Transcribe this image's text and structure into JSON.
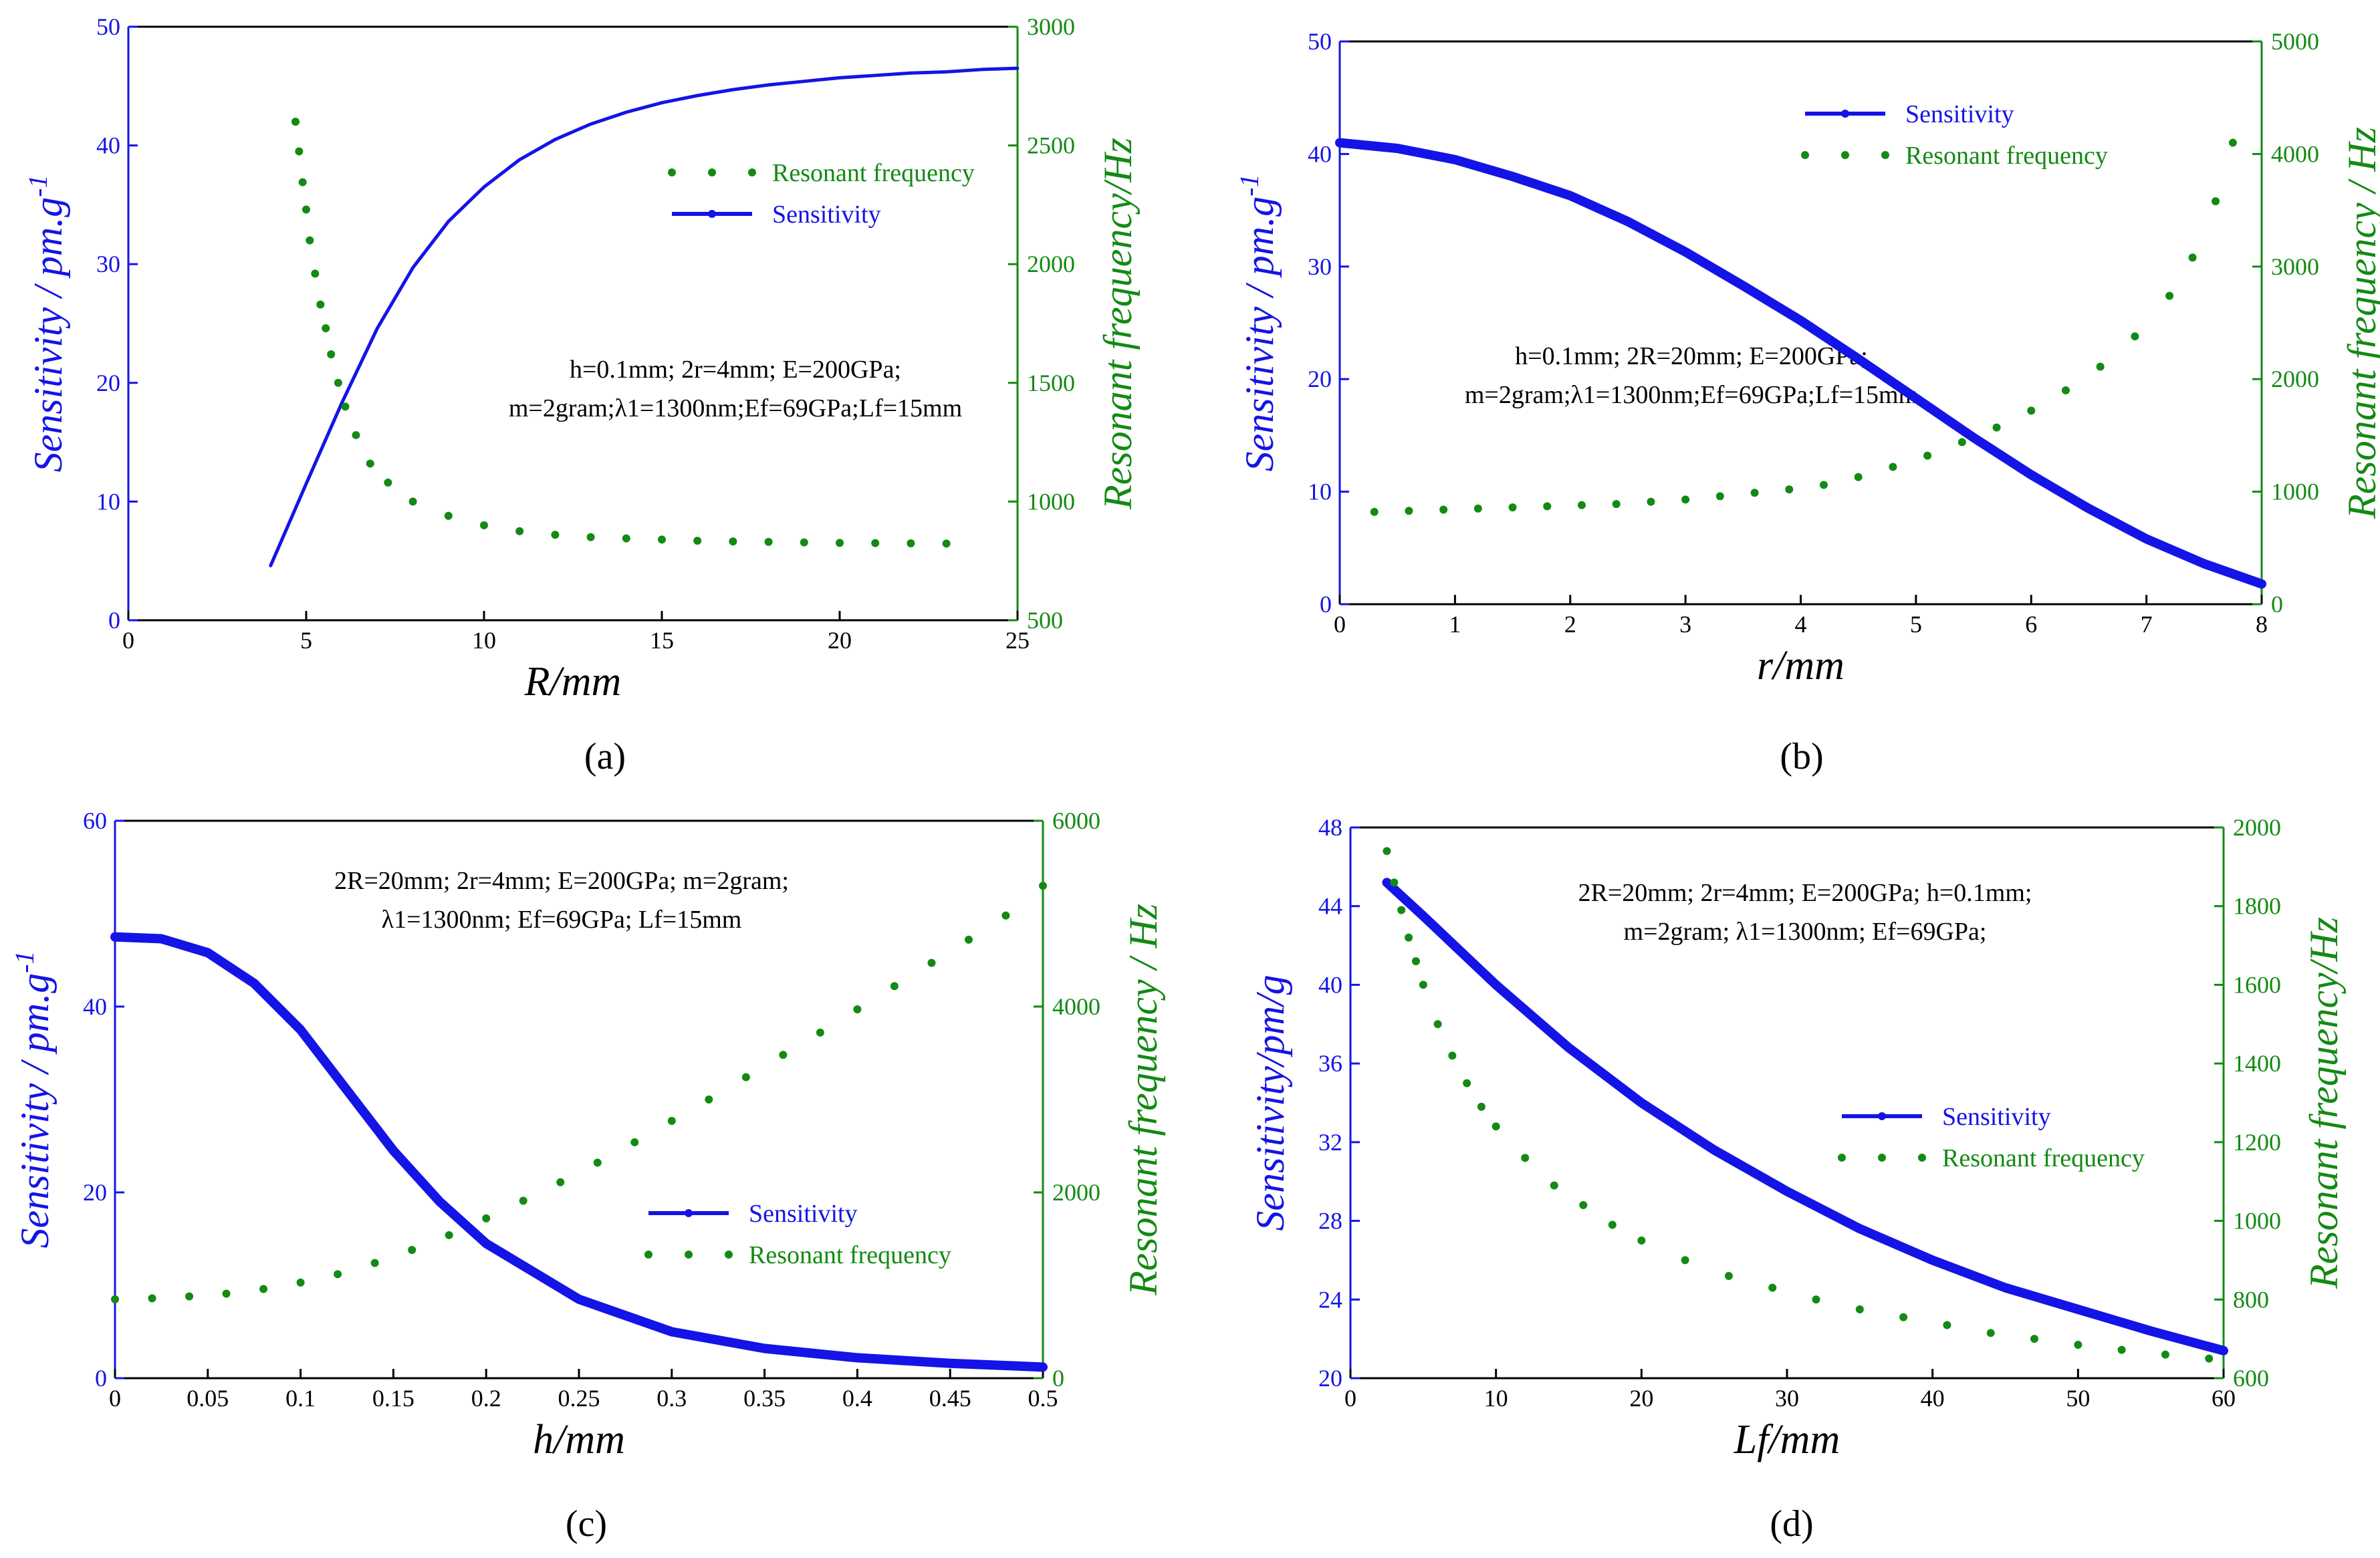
{
  "colors": {
    "sensitivity": "#1414e6",
    "resonant": "#138a13",
    "text": "#000000"
  },
  "chart_data": [
    {
      "type": "line",
      "panel_label": "(a)",
      "xlabel": "R/mm",
      "ylabel_left": "Sensitivity / pm.g",
      "ylabel_left_sup": "-1",
      "ylabel_right": "Resonant frequency/Hz",
      "xlim": [
        0,
        25
      ],
      "xticks": [
        0,
        5,
        10,
        15,
        20,
        25
      ],
      "ylim_left": [
        0,
        50
      ],
      "yticks_left": [
        0,
        10,
        20,
        30,
        40,
        50
      ],
      "ylim_right": [
        500,
        3000
      ],
      "yticks_right": [
        500,
        1000,
        1500,
        2000,
        2500,
        3000
      ],
      "legend": [
        "Resonant frequency",
        "Sensitivity"
      ],
      "legend_order": "resonant-first",
      "legend_position": "upper-right",
      "annotation": [
        "h=0.1mm; 2r=4mm; E=200GPa;",
        "m=2gram;λ1=1300nm;Ef=69GPa;Lf=15mm"
      ],
      "series": [
        {
          "name": "Sensitivity",
          "axis": "left",
          "style": "line",
          "x": [
            4,
            5,
            6,
            7,
            8,
            9,
            10,
            11,
            12,
            13,
            14,
            15,
            16,
            17,
            18,
            19,
            20,
            21,
            22,
            23,
            24,
            25
          ],
          "y": [
            4.6,
            11.5,
            18.3,
            24.6,
            29.7,
            33.6,
            36.5,
            38.8,
            40.5,
            41.8,
            42.8,
            43.6,
            44.2,
            44.7,
            45.1,
            45.4,
            45.7,
            45.9,
            46.1,
            46.2,
            46.4,
            46.5
          ]
        },
        {
          "name": "Resonant frequency",
          "axis": "right",
          "style": "dots",
          "x": [
            4.7,
            4.8,
            4.9,
            5.0,
            5.1,
            5.25,
            5.4,
            5.55,
            5.7,
            5.9,
            6.1,
            6.4,
            6.8,
            7.3,
            8.0,
            9.0,
            10.0,
            11.0,
            12.0,
            13.0,
            14.0,
            15.0,
            16.0,
            17.0,
            18.0,
            19.0,
            20.0,
            21.0,
            22.0,
            23.0
          ],
          "y": [
            2600,
            2475,
            2345,
            2230,
            2100,
            1960,
            1830,
            1730,
            1620,
            1500,
            1400,
            1280,
            1160,
            1080,
            1000,
            940,
            900,
            875,
            860,
            850,
            845,
            840,
            835,
            832,
            830,
            828,
            826,
            825,
            824,
            823
          ]
        }
      ]
    },
    {
      "type": "line",
      "panel_label": "(b)",
      "xlabel": "r/mm",
      "ylabel_left": "Sensitivity / pm.g",
      "ylabel_left_sup": "-1",
      "ylabel_right": "Resonant frequency / Hz",
      "xlim": [
        0,
        8
      ],
      "xticks": [
        0,
        1,
        2,
        3,
        4,
        5,
        6,
        7,
        8
      ],
      "ylim_left": [
        0,
        50
      ],
      "yticks_left": [
        0,
        10,
        20,
        30,
        40,
        50
      ],
      "ylim_right": [
        0,
        5000
      ],
      "yticks_right": [
        0,
        1000,
        2000,
        3000,
        4000,
        5000
      ],
      "legend": [
        "Sensitivity",
        "Resonant frequency"
      ],
      "legend_order": "sensitivity-first",
      "legend_position": "upper-center",
      "annotation": [
        "h=0.1mm; 2R=20mm; E=200GPa;",
        "m=2gram;λ1=1300nm;Ef=69GPa;Lf=15mm"
      ],
      "series": [
        {
          "name": "Sensitivity",
          "axis": "left",
          "style": "thick",
          "x": [
            0,
            0.5,
            1,
            1.5,
            2,
            2.5,
            3,
            3.5,
            4,
            4.5,
            5,
            5.5,
            6,
            6.5,
            7,
            7.5,
            8
          ],
          "y": [
            41.0,
            40.5,
            39.5,
            38.0,
            36.3,
            34.0,
            31.3,
            28.3,
            25.2,
            21.8,
            18.3,
            14.8,
            11.5,
            8.5,
            5.8,
            3.6,
            1.8
          ]
        },
        {
          "name": "Resonant frequency",
          "axis": "right",
          "style": "dots",
          "x": [
            0.3,
            0.6,
            0.9,
            1.2,
            1.5,
            1.8,
            2.1,
            2.4,
            2.7,
            3.0,
            3.3,
            3.6,
            3.9,
            4.2,
            4.5,
            4.8,
            5.1,
            5.4,
            5.7,
            6.0,
            6.3,
            6.6,
            6.9,
            7.2,
            7.4,
            7.6,
            7.75
          ],
          "y": [
            820,
            830,
            840,
            850,
            860,
            870,
            880,
            890,
            910,
            930,
            960,
            990,
            1020,
            1060,
            1130,
            1220,
            1320,
            1440,
            1570,
            1720,
            1900,
            2110,
            2380,
            2740,
            3080,
            3580,
            4100
          ]
        }
      ]
    },
    {
      "type": "line",
      "panel_label": "(c)",
      "xlabel": "h/mm",
      "ylabel_left": "Sensitivity / pm.g",
      "ylabel_left_sup": "-1",
      "ylabel_right": "Resonant frequency / Hz",
      "xlim": [
        0,
        0.5
      ],
      "xticks": [
        0,
        0.05,
        0.1,
        0.15,
        0.2,
        0.25,
        0.3,
        0.35,
        0.4,
        0.45,
        0.5
      ],
      "ylim_left": [
        0,
        60
      ],
      "yticks_left": [
        0,
        20,
        40,
        60
      ],
      "ylim_right": [
        0,
        6000
      ],
      "yticks_right": [
        0,
        2000,
        4000,
        6000
      ],
      "legend": [
        "Sensitivity",
        "Resonant frequency"
      ],
      "legend_order": "sensitivity-first",
      "legend_position": "center-right",
      "annotation": [
        "2R=20mm; 2r=4mm; E=200GPa; m=2gram;",
        "λ1=1300nm; Ef=69GPa; Lf=15mm"
      ],
      "series": [
        {
          "name": "Sensitivity",
          "axis": "left",
          "style": "thick",
          "x": [
            0,
            0.025,
            0.05,
            0.075,
            0.1,
            0.125,
            0.15,
            0.175,
            0.2,
            0.25,
            0.3,
            0.35,
            0.4,
            0.45,
            0.5
          ],
          "y": [
            47.5,
            47.3,
            45.8,
            42.5,
            37.5,
            31.0,
            24.5,
            19.0,
            14.5,
            8.5,
            5.0,
            3.2,
            2.2,
            1.6,
            1.2
          ]
        },
        {
          "name": "Resonant frequency",
          "axis": "right",
          "style": "dots",
          "x": [
            0.0,
            0.02,
            0.04,
            0.06,
            0.08,
            0.1,
            0.12,
            0.14,
            0.16,
            0.18,
            0.2,
            0.22,
            0.24,
            0.26,
            0.28,
            0.3,
            0.32,
            0.34,
            0.36,
            0.38,
            0.4,
            0.42,
            0.44,
            0.46,
            0.48,
            0.5
          ],
          "y": [
            850,
            860,
            880,
            910,
            960,
            1030,
            1120,
            1240,
            1380,
            1540,
            1720,
            1910,
            2110,
            2320,
            2540,
            2770,
            3000,
            3240,
            3480,
            3720,
            3970,
            4220,
            4470,
            4720,
            4980,
            5300
          ]
        }
      ]
    },
    {
      "type": "line",
      "panel_label": "(d)",
      "xlabel": "Lf/mm",
      "ylabel_left": "Sensitivity/pm/g",
      "ylabel_left_sup": "",
      "ylabel_right": "Resonant frequency/Hz",
      "xlim": [
        0,
        60
      ],
      "xticks": [
        0,
        10,
        20,
        30,
        40,
        50,
        60
      ],
      "ylim_left": [
        20,
        48
      ],
      "yticks_left": [
        20,
        24,
        28,
        32,
        36,
        40,
        44,
        48
      ],
      "ylim_right": [
        600,
        2000
      ],
      "yticks_right": [
        600,
        800,
        1000,
        1200,
        1400,
        1600,
        1800,
        2000
      ],
      "legend": [
        "Sensitivity",
        "Resonant frequency"
      ],
      "legend_order": "sensitivity-first",
      "legend_position": "center-right",
      "annotation": [
        "2R=20mm; 2r=4mm; E=200GPa; h=0.1mm;",
        "m=2gram; λ1=1300nm; Ef=69GPa;"
      ],
      "series": [
        {
          "name": "Sensitivity",
          "axis": "left",
          "style": "thick",
          "x": [
            2.5,
            5,
            10,
            15,
            20,
            25,
            30,
            35,
            40,
            45,
            50,
            55,
            60
          ],
          "y": [
            45.2,
            43.5,
            40.0,
            36.8,
            34.0,
            31.6,
            29.5,
            27.6,
            26.0,
            24.6,
            23.5,
            22.4,
            21.4
          ]
        },
        {
          "name": "Resonant frequency",
          "axis": "right",
          "style": "dots",
          "x": [
            2.5,
            3,
            3.5,
            4,
            4.5,
            5,
            6,
            7,
            8,
            9,
            10,
            12,
            14,
            16,
            18,
            20,
            23,
            26,
            29,
            32,
            35,
            38,
            41,
            44,
            47,
            50,
            53,
            56,
            59
          ],
          "y": [
            1940,
            1860,
            1790,
            1720,
            1660,
            1600,
            1500,
            1420,
            1350,
            1290,
            1240,
            1160,
            1090,
            1040,
            990,
            950,
            900,
            860,
            830,
            800,
            775,
            755,
            735,
            715,
            700,
            685,
            672,
            660,
            650
          ]
        }
      ]
    }
  ]
}
